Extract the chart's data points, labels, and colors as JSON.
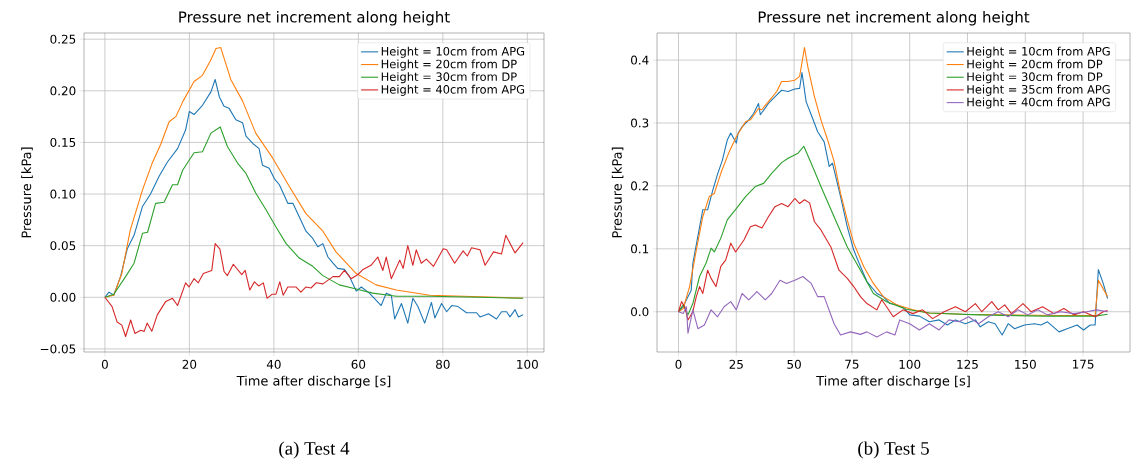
{
  "chart_data": [
    {
      "type": "line",
      "title": "Pressure net increment along height",
      "xlabel": "Time after discharge [s]",
      "ylabel": "Pressure [kPa]",
      "annotations": [
        "(a) Test 4"
      ],
      "xlim": [
        -4.95,
        103.95
      ],
      "ylim": [
        -0.053,
        0.256
      ],
      "xticks": [
        0,
        20,
        40,
        60,
        80,
        100
      ],
      "yticks": [
        {
          "value": -0.05,
          "label": "−0.05"
        },
        {
          "value": 0,
          "label": "0.00"
        },
        {
          "value": 0.05,
          "label": "0.05"
        },
        {
          "value": 0.1,
          "label": "0.10"
        },
        {
          "value": 0.15,
          "label": "0.15"
        },
        {
          "value": 0.2,
          "label": "0.20"
        },
        {
          "value": 0.25,
          "label": "0.25"
        }
      ],
      "grid": true,
      "legend": "top right",
      "series": [
        {
          "name": "Height = 10cm from APG",
          "color": "#1f77b4",
          "x": [
            0,
            0.95,
            2.1,
            3.7,
            5.3,
            6.9,
            8.9,
            10.8,
            12.8,
            14.8,
            17.2,
            19.1,
            20,
            21.1,
            23.1,
            25.1,
            26.1,
            27.1,
            28.2,
            29.4,
            31,
            32.6,
            33.4,
            35,
            36.5,
            37.3,
            38.9,
            40.1,
            41.3,
            43.3,
            44.5,
            46,
            47.6,
            49.2,
            50.4,
            51.6,
            52.8,
            54,
            55.1,
            56.7,
            57.9,
            59.5,
            60.7,
            62.6,
            65.4,
            66.6,
            67.8,
            68.6,
            70.2,
            71.7,
            72.9,
            74.1,
            75.7,
            77.3,
            78.1,
            79.7,
            80.9,
            82.1,
            83.6,
            85.6,
            88,
            88.8,
            90.8,
            92.7,
            93.9,
            95.1,
            95.9,
            97.1,
            97.9,
            99
          ],
          "values": [
            0,
            0.005,
            0.002,
            0.02,
            0.047,
            0.06,
            0.088,
            0.1,
            0.117,
            0.131,
            0.144,
            0.162,
            0.18,
            0.177,
            0.186,
            0.199,
            0.211,
            0.194,
            0.185,
            0.183,
            0.172,
            0.169,
            0.156,
            0.149,
            0.144,
            0.128,
            0.125,
            0.115,
            0.109,
            0.091,
            0.091,
            0.078,
            0.064,
            0.057,
            0.049,
            0.052,
            0.039,
            0.033,
            0.028,
            0.027,
            0.02,
            0.006,
            0.01,
            0.004,
            -0.008,
            0.004,
            0.002,
            -0.021,
            -0.006,
            -0.025,
            -0.001,
            -0.009,
            -0.025,
            -0.005,
            -0.02,
            -0.006,
            -0.014,
            -0.008,
            -0.009,
            -0.015,
            -0.015,
            -0.019,
            -0.016,
            -0.021,
            -0.014,
            -0.014,
            -0.019,
            -0.012,
            -0.019,
            -0.017
          ]
        },
        {
          "name": "Height = 20cm from DP",
          "color": "#ff7f0e",
          "x": [
            0,
            2.1,
            4,
            6,
            8.9,
            11.2,
            13.2,
            15.2,
            16.8,
            18.5,
            21.1,
            23.1,
            25.1,
            26.3,
            27.4,
            29.8,
            32.6,
            35.7,
            39.7,
            43.7,
            47.6,
            51.6,
            54.7,
            59.5,
            64.2,
            69,
            76.9,
            84.8,
            92.7,
            99
          ],
          "values": [
            0,
            0.002,
            0.023,
            0.065,
            0.104,
            0.13,
            0.148,
            0.17,
            0.175,
            0.19,
            0.209,
            0.215,
            0.23,
            0.241,
            0.242,
            0.211,
            0.19,
            0.159,
            0.135,
            0.107,
            0.081,
            0.064,
            0.044,
            0.023,
            0.012,
            0.007,
            0.002,
            0.001,
            0,
            -0.001
          ]
        },
        {
          "name": "Height = 30cm from DP",
          "color": "#2ca02c",
          "x": [
            0,
            2.1,
            4.9,
            6.9,
            8.9,
            10.1,
            12,
            14,
            16,
            17.2,
            18.4,
            21.1,
            23.1,
            25.1,
            27.3,
            29,
            31.4,
            33.4,
            35.7,
            38.1,
            40.5,
            42.9,
            46,
            49.2,
            51.6,
            55.5,
            59.5,
            63.4,
            69,
            76.9,
            88.8,
            99
          ],
          "values": [
            0,
            0.003,
            0.02,
            0.033,
            0.062,
            0.063,
            0.091,
            0.092,
            0.109,
            0.109,
            0.123,
            0.14,
            0.141,
            0.159,
            0.165,
            0.146,
            0.13,
            0.12,
            0.101,
            0.085,
            0.068,
            0.052,
            0.038,
            0.03,
            0.021,
            0.012,
            0.008,
            0.004,
            0.001,
            0.001,
            0,
            -0.001
          ]
        },
        {
          "name": "Height = 40cm from APG",
          "color": "#d62728",
          "x": [
            0,
            1.7,
            2.9,
            4,
            4.9,
            6.1,
            7.1,
            8.5,
            9.3,
            10,
            11.1,
            12.4,
            14.4,
            16,
            17.2,
            19.1,
            19.9,
            21.1,
            22.1,
            23.3,
            25.3,
            26.1,
            27.2,
            28.2,
            29,
            30.4,
            32.4,
            33.2,
            34.3,
            35.4,
            36.4,
            37.5,
            38.4,
            39.6,
            40.5,
            41.4,
            42.2,
            43.3,
            45.2,
            46.4,
            47.6,
            48.8,
            50,
            51.6,
            54,
            55.5,
            56.7,
            58.3,
            59.9,
            61.1,
            63,
            64.6,
            65.8,
            66.6,
            67.8,
            69.8,
            70.6,
            71.7,
            72.9,
            73.7,
            74.9,
            76.1,
            77.8,
            80.1,
            80.9,
            82.8,
            84.8,
            85.8,
            86.8,
            88.8,
            90,
            92,
            93.9,
            94.9,
            97.1,
            99
          ],
          "values": [
            0,
            -0.009,
            -0.024,
            -0.027,
            -0.038,
            -0.022,
            -0.035,
            -0.032,
            -0.033,
            -0.025,
            -0.033,
            -0.017,
            -0.004,
            -0.001,
            -0.008,
            0.014,
            0.01,
            0.018,
            0.014,
            0.023,
            0.026,
            0.052,
            0.047,
            0.025,
            0.021,
            0.032,
            0.022,
            0.026,
            0.007,
            0.015,
            0.011,
            0.014,
            -0.001,
            0.003,
            0.003,
            0.015,
            0.002,
            0.01,
            0.01,
            0.005,
            0.01,
            0.009,
            0.014,
            0.013,
            0.02,
            0.02,
            0.026,
            0.018,
            0.022,
            0.027,
            0.031,
            0.039,
            0.026,
            0.039,
            0.018,
            0.036,
            0.028,
            0.05,
            0.031,
            0.046,
            0.033,
            0.037,
            0.03,
            0.047,
            0.046,
            0.033,
            0.045,
            0.04,
            0.048,
            0.046,
            0.031,
            0.044,
            0.042,
            0.06,
            0.043,
            0.053
          ]
        }
      ]
    },
    {
      "type": "line",
      "title": "Pressure net increment along height",
      "xlabel": "Time after discharge [s]",
      "ylabel": "Pressure [kPa]",
      "annotations": [
        "(b) Test 5"
      ],
      "xlim": [
        -9.3,
        195.3
      ],
      "ylim": [
        -0.064,
        0.443
      ],
      "xticks": [
        0,
        25,
        50,
        75,
        100,
        125,
        150,
        175
      ],
      "yticks": [
        {
          "value": 0,
          "label": "0.0"
        },
        {
          "value": 0.1,
          "label": "0.1"
        },
        {
          "value": 0.2,
          "label": "0.2"
        },
        {
          "value": 0.3,
          "label": "0.3"
        },
        {
          "value": 0.4,
          "label": "0.4"
        }
      ],
      "grid": true,
      "legend": "top right",
      "series": [
        {
          "name": "Height = 10cm from APG",
          "color": "#1f77b4",
          "x": [
            0,
            2,
            4.1,
            5.5,
            6.2,
            10.5,
            12.6,
            14.8,
            17,
            19,
            21.1,
            22.6,
            25,
            25.8,
            27.5,
            30.4,
            32.5,
            34.6,
            35.4,
            38.9,
            41.8,
            44.6,
            47.4,
            50.3,
            52.4,
            53.4,
            55.2,
            57.4,
            60.2,
            63,
            65.2,
            66.6,
            70.1,
            73,
            75.8,
            78.7,
            81.5,
            85.8,
            88.6,
            91.4,
            94.3,
            97.8,
            100,
            104.2,
            108.5,
            112.7,
            116.3,
            119.8,
            124.1,
            128.4,
            130.5,
            134,
            136.9,
            140,
            142.6,
            145.4,
            149.7,
            154,
            156.8,
            159.6,
            164.6,
            168.1,
            172.4,
            175.2,
            178.1,
            180.2,
            181.6,
            183.7,
            185.6
          ],
          "values": [
            0,
            0.008,
            0.024,
            0.034,
            0.077,
            0.162,
            0.162,
            0.193,
            0.22,
            0.241,
            0.273,
            0.284,
            0.268,
            0.284,
            0.294,
            0.305,
            0.315,
            0.331,
            0.313,
            0.331,
            0.342,
            0.352,
            0.35,
            0.354,
            0.355,
            0.38,
            0.334,
            0.313,
            0.286,
            0.27,
            0.231,
            0.236,
            0.183,
            0.135,
            0.098,
            0.072,
            0.048,
            0.029,
            0.024,
            0.013,
            0.011,
            0.005,
            -0.005,
            -0.007,
            -0.016,
            -0.013,
            -0.021,
            -0.013,
            -0.019,
            -0.013,
            -0.024,
            -0.016,
            -0.019,
            -0.037,
            -0.019,
            -0.027,
            -0.021,
            -0.019,
            -0.021,
            -0.016,
            -0.032,
            -0.027,
            -0.021,
            -0.029,
            -0.021,
            -0.021,
            0.067,
            0.045,
            0.021
          ]
        },
        {
          "name": "Height = 20cm from DP",
          "color": "#ff7f0e",
          "x": [
            0,
            2,
            4.8,
            7.7,
            10.5,
            13.3,
            15.5,
            18.3,
            21.9,
            25,
            29,
            31.1,
            34.6,
            36,
            38.9,
            42.5,
            44.6,
            47.4,
            50.3,
            52.4,
            54.5,
            55.9,
            58.8,
            61.6,
            64.5,
            67.3,
            70.1,
            73,
            75.8,
            80.1,
            84.3,
            88.6,
            94.3,
            101.4,
            108.5,
            122.7,
            144,
            165.3,
            180.2,
            181.6,
            185.6
          ],
          "values": [
            0,
            0.005,
            0.04,
            0.098,
            0.151,
            0.183,
            0.188,
            0.22,
            0.254,
            0.278,
            0.302,
            0.305,
            0.323,
            0.321,
            0.334,
            0.35,
            0.366,
            0.366,
            0.368,
            0.374,
            0.42,
            0.39,
            0.342,
            0.305,
            0.273,
            0.239,
            0.188,
            0.146,
            0.109,
            0.072,
            0.045,
            0.024,
            0.011,
            0.003,
            -0.002,
            -0.004,
            -0.005,
            -0.006,
            -0.006,
            0.05,
            0.024
          ]
        },
        {
          "name": "Height = 30cm from DP",
          "color": "#2ca02c",
          "x": [
            0,
            2,
            4.1,
            6.2,
            9.1,
            11.9,
            14.1,
            15.5,
            18.3,
            21.1,
            25,
            29,
            33.2,
            36.8,
            40.3,
            44.6,
            47.4,
            51.7,
            54.2,
            57.4,
            61.6,
            67.3,
            73,
            78.7,
            84.3,
            90,
            98.5,
            108.5,
            129.8,
            158.2,
            180.2,
            185.6
          ],
          "values": [
            0,
            0.011,
            -0.005,
            0.013,
            0.056,
            0.077,
            0.101,
            0.095,
            0.117,
            0.146,
            0.164,
            0.183,
            0.199,
            0.204,
            0.22,
            0.237,
            0.244,
            0.252,
            0.263,
            0.236,
            0.199,
            0.151,
            0.103,
            0.066,
            0.029,
            0.016,
            0.004,
            -0.002,
            -0.005,
            -0.007,
            -0.007,
            -0.004
          ]
        },
        {
          "name": "Height = 35cm from APG",
          "color": "#d62728",
          "x": [
            0,
            1.3,
            2.7,
            4.1,
            6.2,
            7.7,
            9.1,
            10.5,
            12.6,
            14.1,
            16.2,
            18.3,
            20.4,
            22.6,
            24.7,
            28.3,
            31.1,
            33.2,
            36.1,
            38.9,
            41.7,
            44.6,
            47.4,
            50.3,
            52.4,
            54.5,
            56.7,
            58.8,
            61.6,
            65.9,
            69.4,
            73,
            75.8,
            78.7,
            81.5,
            85.8,
            87.9,
            90,
            92.9,
            97.1,
            101.4,
            105.6,
            109.9,
            114.9,
            119.8,
            124.1,
            128.4,
            131.2,
            135.5,
            138.3,
            141.1,
            144,
            149,
            152.5,
            157.5,
            162.4,
            166.7,
            171,
            175.2,
            180.2,
            183.7,
            185.6
          ],
          "values": [
            0,
            0.016,
            0.008,
            -0.013,
            0,
            0.024,
            0.04,
            0.029,
            0.066,
            0.053,
            0.04,
            0.072,
            0.082,
            0.109,
            0.095,
            0.114,
            0.135,
            0.138,
            0.133,
            0.151,
            0.167,
            0.172,
            0.167,
            0.18,
            0.172,
            0.178,
            0.173,
            0.143,
            0.13,
            0.103,
            0.066,
            0.053,
            0.04,
            0.024,
            0.013,
            0.003,
            0.019,
            0.008,
            -0.008,
            0.003,
            -0.003,
            0.003,
            -0.011,
            0,
            0.008,
            0,
            0.013,
            0,
            0.016,
            0.003,
            0.011,
            -0.003,
            0.013,
            0,
            0.008,
            -0.003,
            0.005,
            -0.005,
            0,
            -0.008,
            0,
            0.002
          ]
        },
        {
          "name": "Height = 40cm from APG",
          "color": "#9467bd",
          "x": [
            0,
            2,
            3.4,
            4.1,
            6.2,
            8.4,
            11.2,
            14.1,
            16.9,
            19.7,
            22.6,
            25,
            27.5,
            30.4,
            33.9,
            37.5,
            40.3,
            43.9,
            46.7,
            50.3,
            53.8,
            57.4,
            60.2,
            63,
            67.3,
            70.1,
            74.4,
            78.7,
            81.5,
            85.8,
            90,
            93.6,
            95.7,
            100,
            104.2,
            108.5,
            112.7,
            117,
            121.3,
            125.5,
            129.8,
            134,
            138.3,
            142.6,
            146.8,
            151.1,
            155.4,
            159.6,
            165.3,
            171,
            176.6,
            180.9,
            185.6
          ],
          "values": [
            0,
            -0.003,
            0.008,
            -0.034,
            0.003,
            -0.027,
            -0.021,
            0.003,
            -0.008,
            0.008,
            0.016,
            0.003,
            0.029,
            0.019,
            0.032,
            0.019,
            0.029,
            0.05,
            0.045,
            0.05,
            0.056,
            0.045,
            0.024,
            0.024,
            -0.019,
            -0.037,
            -0.032,
            -0.036,
            -0.032,
            -0.04,
            -0.032,
            -0.037,
            -0.013,
            -0.019,
            -0.029,
            -0.019,
            -0.029,
            -0.013,
            -0.016,
            -0.008,
            -0.019,
            -0.008,
            0,
            -0.008,
            0.003,
            -0.005,
            0.003,
            -0.005,
            0,
            -0.003,
            0,
            0.003,
            0
          ]
        }
      ]
    }
  ]
}
